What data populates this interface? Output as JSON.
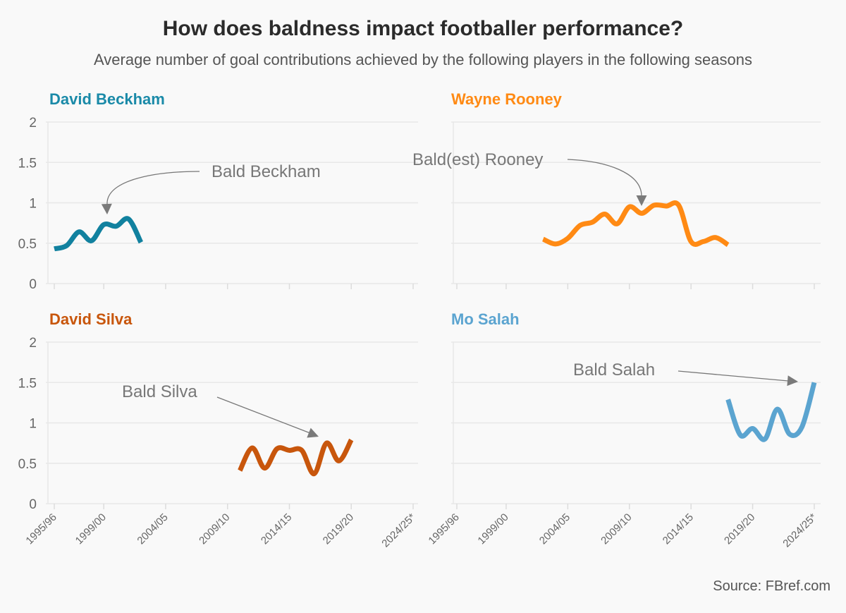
{
  "title": "How does baldness impact footballer performance?",
  "subtitle": "Average number of goal contributions achieved by the following players in the following seasons",
  "source": "Source: FBref.com",
  "chart_data": [
    {
      "type": "line",
      "title": "David Beckham",
      "color": "#11819f",
      "title_color": "#1a8aa8",
      "ylim": [
        0,
        2
      ],
      "yticks": [
        "0",
        "0.5",
        "1",
        "1.5",
        "2"
      ],
      "xticks": [
        "1995/96",
        "1999/00",
        "2004/05",
        "2009/10",
        "2014/15",
        "2019/20",
        "2024/25*"
      ],
      "x": [
        "1995/96",
        "1996/97",
        "1997/98",
        "1998/99",
        "1999/00",
        "2000/01",
        "2001/02",
        "2002/03"
      ],
      "values": [
        0.43,
        0.47,
        0.64,
        0.53,
        0.73,
        0.71,
        0.8,
        0.51
      ],
      "annotation": {
        "text": "Bald Beckham",
        "points_to": "2000/01"
      }
    },
    {
      "type": "line",
      "title": "Wayne Rooney",
      "color": "#ff8a14",
      "title_color": "#ff8a14",
      "ylim": [
        0,
        2
      ],
      "yticks": [
        "0",
        "0.5",
        "1",
        "1.5",
        "2"
      ],
      "xticks": [
        "1995/96",
        "1999/00",
        "2004/05",
        "2009/10",
        "2014/15",
        "2019/20",
        "2024/25*"
      ],
      "x": [
        "2002/03",
        "2003/04",
        "2004/05",
        "2005/06",
        "2006/07",
        "2007/08",
        "2008/09",
        "2009/10",
        "2010/11",
        "2011/12",
        "2012/13",
        "2013/14",
        "2014/15",
        "2015/16",
        "2016/17",
        "2017/18"
      ],
      "values": [
        0.55,
        0.49,
        0.56,
        0.72,
        0.76,
        0.86,
        0.74,
        0.95,
        0.87,
        0.97,
        0.96,
        0.97,
        0.52,
        0.52,
        0.57,
        0.48
      ],
      "annotation": {
        "text": "Bald(est) Rooney",
        "points_to": "2010/11"
      }
    },
    {
      "type": "line",
      "title": "David Silva",
      "color": "#c8560c",
      "title_color": "#c8560c",
      "ylim": [
        0,
        2
      ],
      "yticks": [
        "0",
        "0.5",
        "1",
        "1.5",
        "2"
      ],
      "xticks": [
        "1995/96",
        "1999/00",
        "2004/05",
        "2009/10",
        "2014/15",
        "2019/20",
        "2024/25*"
      ],
      "x": [
        "2010/11",
        "2011/12",
        "2012/13",
        "2013/14",
        "2014/15",
        "2015/16",
        "2016/17",
        "2017/18",
        "2018/19",
        "2019/20"
      ],
      "values": [
        0.41,
        0.69,
        0.44,
        0.68,
        0.66,
        0.66,
        0.37,
        0.75,
        0.53,
        0.79
      ],
      "annotation": {
        "text": "Bald Silva",
        "points_to": "2017/18"
      }
    },
    {
      "type": "line",
      "title": "Mo Salah",
      "color": "#5ba4d0",
      "title_color": "#5ba4d0",
      "ylim": [
        0,
        2
      ],
      "yticks": [
        "0",
        "0.5",
        "1",
        "1.5",
        "2"
      ],
      "xticks": [
        "1995/96",
        "1999/00",
        "2004/05",
        "2009/10",
        "2014/15",
        "2019/20",
        "2024/25*"
      ],
      "x": [
        "2017/18",
        "2018/19",
        "2019/20",
        "2020/21",
        "2021/22",
        "2022/23",
        "2023/24",
        "2024/25"
      ],
      "values": [
        1.29,
        0.85,
        0.93,
        0.8,
        1.17,
        0.86,
        0.95,
        1.5
      ],
      "annotation": {
        "text": "Bald Salah",
        "points_to": "2024/25"
      }
    }
  ]
}
